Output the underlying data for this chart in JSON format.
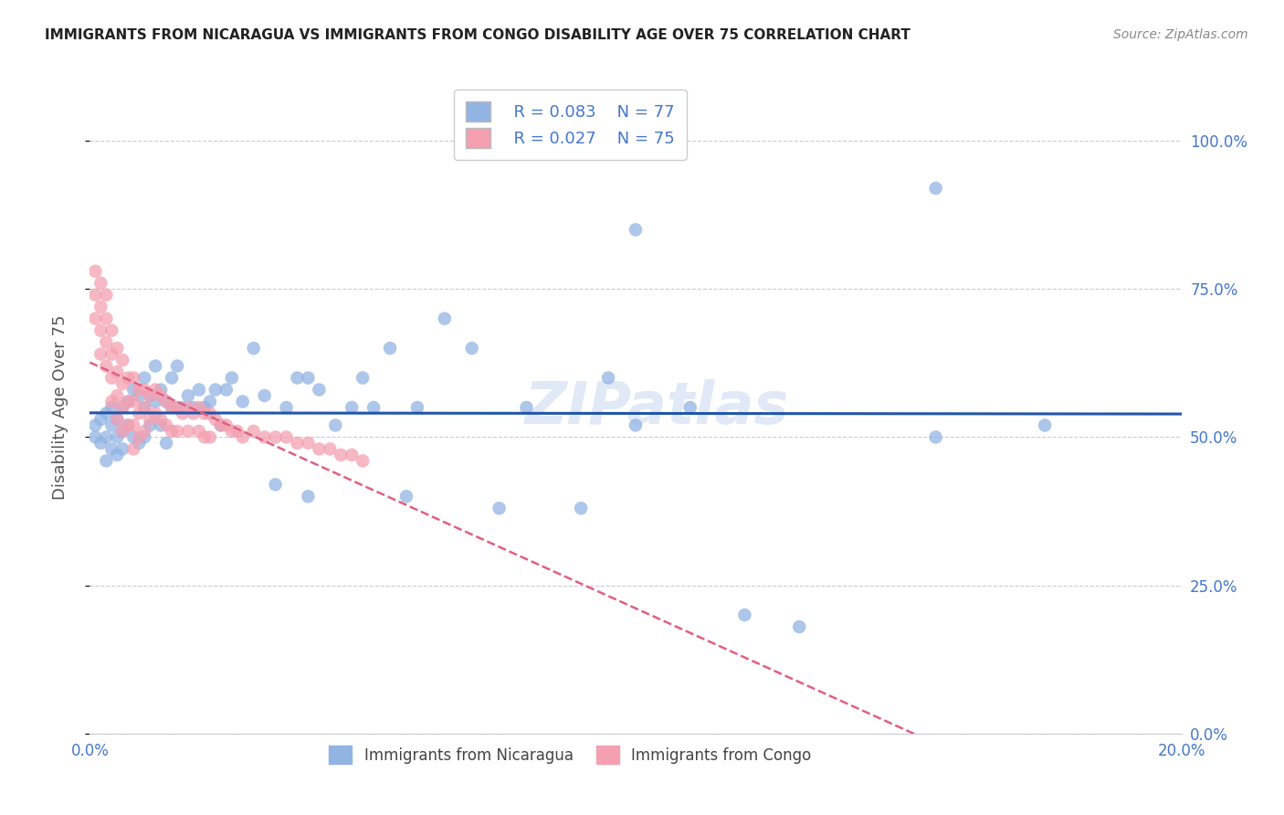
{
  "title": "IMMIGRANTS FROM NICARAGUA VS IMMIGRANTS FROM CONGO DISABILITY AGE OVER 75 CORRELATION CHART",
  "source": "Source: ZipAtlas.com",
  "ylabel": "Disability Age Over 75",
  "xlim": [
    0.0,
    0.2
  ],
  "ylim": [
    0.0,
    1.1
  ],
  "ytick_vals": [
    0.0,
    0.25,
    0.5,
    0.75,
    1.0
  ],
  "ytick_labels_right": [
    "0.0%",
    "25.0%",
    "50.0%",
    "75.0%",
    "100.0%"
  ],
  "xtick_vals": [
    0.0,
    0.02,
    0.04,
    0.06,
    0.08,
    0.1,
    0.12,
    0.14,
    0.16,
    0.18,
    0.2
  ],
  "xtick_labels": [
    "0.0%",
    "",
    "",
    "",
    "",
    "",
    "",
    "",
    "",
    "",
    "20.0%"
  ],
  "legend_blue_label": "  R = 0.083    N = 77",
  "legend_pink_label": "  R = 0.027    N = 75",
  "bottom_legend_blue": "Immigrants from Nicaragua",
  "bottom_legend_pink": "Immigrants from Congo",
  "watermark": "ZIPatlas",
  "blue_color": "#92b4e3",
  "pink_color": "#f4a0b0",
  "blue_line_color": "#2255aa",
  "pink_line_color": "#e06080",
  "title_color": "#222222",
  "source_color": "#888888",
  "axis_label_color": "#555555",
  "tick_color": "#4477cc",
  "grid_color": "#cccccc",
  "watermark_color": "#c8d8ee",
  "nicaragua_x": [
    0.001,
    0.001,
    0.002,
    0.002,
    0.003,
    0.003,
    0.003,
    0.004,
    0.004,
    0.004,
    0.005,
    0.005,
    0.005,
    0.006,
    0.006,
    0.006,
    0.007,
    0.007,
    0.008,
    0.008,
    0.009,
    0.009,
    0.01,
    0.01,
    0.01,
    0.011,
    0.011,
    0.012,
    0.012,
    0.013,
    0.013,
    0.014,
    0.014,
    0.015,
    0.015,
    0.016,
    0.016,
    0.017,
    0.018,
    0.019,
    0.02,
    0.021,
    0.022,
    0.023,
    0.024,
    0.025,
    0.026,
    0.028,
    0.03,
    0.032,
    0.034,
    0.036,
    0.038,
    0.04,
    0.04,
    0.042,
    0.045,
    0.048,
    0.05,
    0.052,
    0.055,
    0.058,
    0.06,
    0.065,
    0.07,
    0.075,
    0.08,
    0.09,
    0.095,
    0.1,
    0.11,
    0.12,
    0.13,
    0.155,
    0.175,
    0.155,
    0.1
  ],
  "nicaragua_y": [
    0.52,
    0.5,
    0.53,
    0.49,
    0.54,
    0.5,
    0.46,
    0.52,
    0.55,
    0.48,
    0.53,
    0.5,
    0.47,
    0.55,
    0.51,
    0.48,
    0.56,
    0.52,
    0.58,
    0.5,
    0.57,
    0.49,
    0.6,
    0.55,
    0.5,
    0.57,
    0.52,
    0.62,
    0.56,
    0.58,
    0.52,
    0.56,
    0.49,
    0.6,
    0.55,
    0.62,
    0.55,
    0.55,
    0.57,
    0.55,
    0.58,
    0.55,
    0.56,
    0.58,
    0.52,
    0.58,
    0.6,
    0.56,
    0.65,
    0.57,
    0.42,
    0.55,
    0.6,
    0.6,
    0.4,
    0.58,
    0.52,
    0.55,
    0.6,
    0.55,
    0.65,
    0.4,
    0.55,
    0.7,
    0.65,
    0.38,
    0.55,
    0.38,
    0.6,
    0.52,
    0.55,
    0.2,
    0.18,
    0.5,
    0.52,
    0.92,
    0.85
  ],
  "congo_x": [
    0.001,
    0.001,
    0.001,
    0.002,
    0.002,
    0.002,
    0.002,
    0.003,
    0.003,
    0.003,
    0.003,
    0.004,
    0.004,
    0.004,
    0.004,
    0.005,
    0.005,
    0.005,
    0.005,
    0.006,
    0.006,
    0.006,
    0.006,
    0.007,
    0.007,
    0.007,
    0.008,
    0.008,
    0.008,
    0.008,
    0.009,
    0.009,
    0.009,
    0.01,
    0.01,
    0.01,
    0.011,
    0.011,
    0.012,
    0.012,
    0.013,
    0.013,
    0.014,
    0.014,
    0.015,
    0.015,
    0.016,
    0.016,
    0.017,
    0.018,
    0.018,
    0.019,
    0.02,
    0.02,
    0.021,
    0.021,
    0.022,
    0.022,
    0.023,
    0.024,
    0.025,
    0.026,
    0.027,
    0.028,
    0.03,
    0.032,
    0.034,
    0.036,
    0.038,
    0.04,
    0.042,
    0.044,
    0.046,
    0.048,
    0.05
  ],
  "congo_y": [
    0.78,
    0.74,
    0.7,
    0.76,
    0.72,
    0.68,
    0.64,
    0.74,
    0.7,
    0.66,
    0.62,
    0.68,
    0.64,
    0.6,
    0.56,
    0.65,
    0.61,
    0.57,
    0.53,
    0.63,
    0.59,
    0.55,
    0.51,
    0.6,
    0.56,
    0.52,
    0.6,
    0.56,
    0.52,
    0.48,
    0.58,
    0.54,
    0.5,
    0.58,
    0.55,
    0.51,
    0.57,
    0.53,
    0.58,
    0.54,
    0.57,
    0.53,
    0.56,
    0.52,
    0.55,
    0.51,
    0.55,
    0.51,
    0.54,
    0.55,
    0.51,
    0.54,
    0.55,
    0.51,
    0.54,
    0.5,
    0.54,
    0.5,
    0.53,
    0.52,
    0.52,
    0.51,
    0.51,
    0.5,
    0.51,
    0.5,
    0.5,
    0.5,
    0.49,
    0.49,
    0.48,
    0.48,
    0.47,
    0.47,
    0.46
  ]
}
